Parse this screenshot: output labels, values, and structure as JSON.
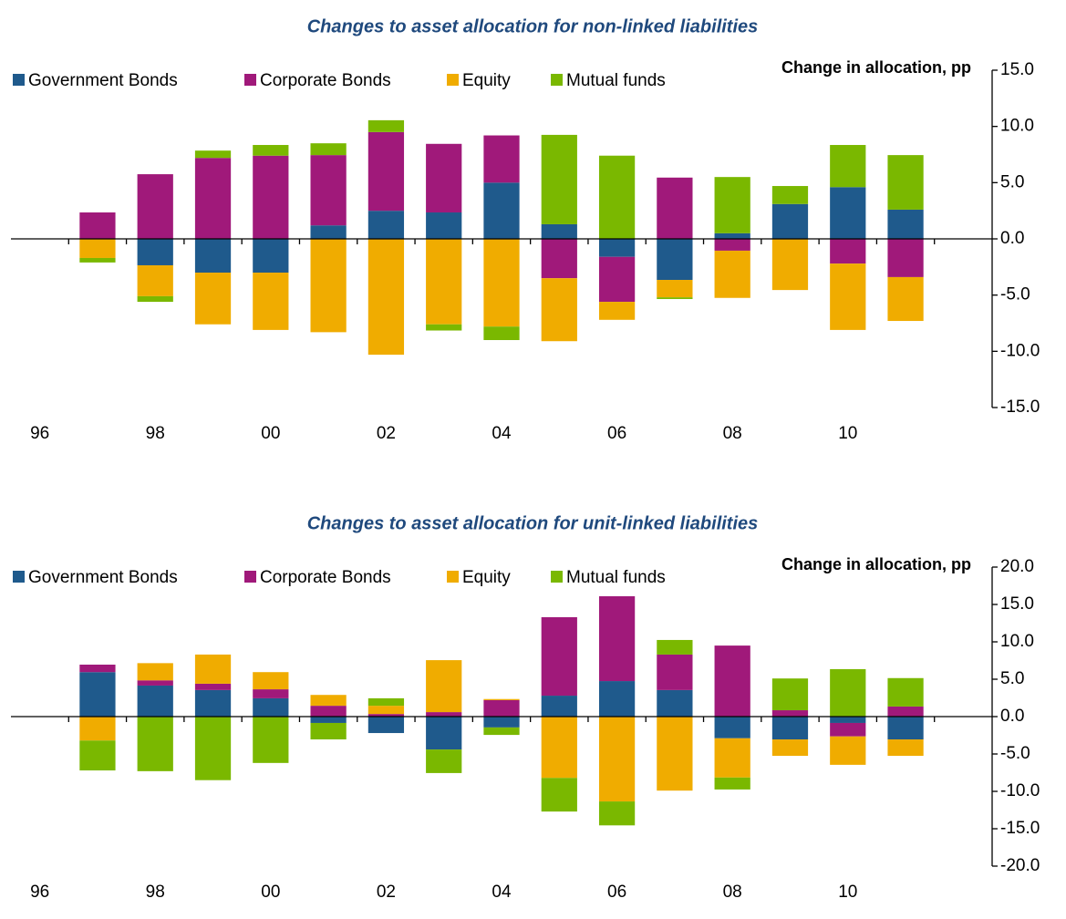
{
  "chart_data": [
    {
      "type": "bar",
      "stacked": true,
      "title": "Changes to asset allocation for non-linked liabilities",
      "y_label": "Change in allocation, pp",
      "categories": [
        "96",
        null,
        "98",
        null,
        "00",
        null,
        "02",
        null,
        "04",
        null,
        "06",
        null,
        "08",
        null,
        "10",
        null,
        null
      ],
      "series": [
        {
          "name": "Government Bonds",
          "color": "#1f5a8c",
          "values": [
            null,
            0,
            -2.35,
            -3.0,
            -3.0,
            1.2,
            2.5,
            2.35,
            5.0,
            1.3,
            -1.6,
            -3.65,
            0.5,
            3.1,
            4.6,
            2.6,
            null
          ]
        },
        {
          "name": "Corporate Bonds",
          "color": "#a0197a",
          "values": [
            null,
            2.35,
            5.75,
            7.2,
            7.4,
            6.25,
            7.0,
            6.1,
            4.2,
            -3.5,
            -4.0,
            5.45,
            -1.05,
            0,
            -2.2,
            -3.4,
            null
          ]
        },
        {
          "name": "Equity",
          "color": "#f0ac00",
          "values": [
            null,
            -1.7,
            -2.75,
            -4.6,
            -5.1,
            -8.3,
            -10.3,
            -7.6,
            -7.8,
            -5.6,
            -1.6,
            -1.55,
            -4.2,
            -4.55,
            -5.9,
            -3.9,
            null
          ]
        },
        {
          "name": "Mutual funds",
          "color": "#7ab800",
          "values": [
            null,
            -0.4,
            -0.5,
            0.65,
            0.95,
            1.05,
            1.05,
            -0.55,
            -1.2,
            7.95,
            7.4,
            -0.15,
            5.0,
            1.6,
            3.75,
            4.85,
            null
          ]
        }
      ],
      "ylim": [
        -15,
        15
      ],
      "yticks": [
        {
          "value": 15,
          "label": "15.0"
        },
        {
          "value": 10,
          "label": "10.0"
        },
        {
          "value": 5,
          "label": "5.0"
        },
        {
          "value": 0,
          "label": "0.0"
        },
        {
          "value": -5,
          "label": "-5.0"
        },
        {
          "value": -10,
          "label": "-10.0"
        },
        {
          "value": -15,
          "label": "-15.0"
        }
      ],
      "legend": "top-left"
    },
    {
      "type": "bar",
      "stacked": true,
      "title": "Changes to asset allocation for unit-linked liabilities",
      "y_label": "Change in allocation, pp",
      "categories": [
        "96",
        null,
        "98",
        null,
        "00",
        null,
        "02",
        null,
        "04",
        null,
        "06",
        null,
        "08",
        null,
        "10",
        null,
        null
      ],
      "series": [
        {
          "name": "Government Bonds",
          "color": "#1f5a8c",
          "values": [
            null,
            5.95,
            4.15,
            3.55,
            2.45,
            -0.85,
            -2.2,
            -4.4,
            -1.45,
            2.8,
            4.75,
            3.55,
            -2.9,
            -3.05,
            -0.85,
            -3.05,
            null
          ]
        },
        {
          "name": "Corporate Bonds",
          "color": "#a0197a",
          "values": [
            null,
            1.0,
            0.7,
            0.85,
            1.2,
            1.45,
            0.35,
            0.6,
            2.2,
            10.5,
            11.35,
            4.75,
            9.5,
            0.85,
            -1.8,
            1.35,
            null
          ]
        },
        {
          "name": "Equity",
          "color": "#f0ac00",
          "values": [
            null,
            -3.2,
            2.3,
            3.9,
            2.3,
            1.45,
            1.1,
            6.95,
            0.15,
            -8.2,
            -11.35,
            -9.9,
            -5.25,
            -2.2,
            -3.8,
            -2.2,
            null
          ]
        },
        {
          "name": "Mutual funds",
          "color": "#7ab800",
          "values": [
            null,
            -4.0,
            -7.3,
            -8.5,
            -6.2,
            -2.2,
            1.0,
            -3.15,
            -1.0,
            -4.5,
            -3.2,
            1.95,
            -1.6,
            4.25,
            6.35,
            3.8,
            null
          ]
        }
      ],
      "ylim": [
        -20,
        20
      ],
      "yticks": [
        {
          "value": 20,
          "label": "20.0"
        },
        {
          "value": 15,
          "label": "15.0"
        },
        {
          "value": 10,
          "label": "10.0"
        },
        {
          "value": 5,
          "label": "5.0"
        },
        {
          "value": 0,
          "label": "0.0"
        },
        {
          "value": -5,
          "label": "-5.0"
        },
        {
          "value": -10,
          "label": "-10.0"
        },
        {
          "value": -15,
          "label": "-15.0"
        },
        {
          "value": -20,
          "label": "-20.0"
        }
      ],
      "legend": "top-left"
    }
  ]
}
